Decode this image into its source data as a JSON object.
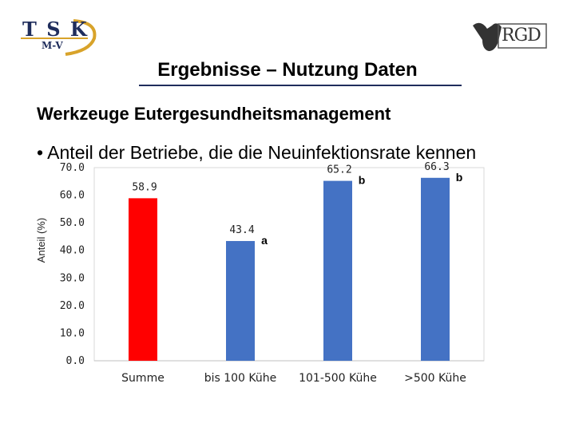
{
  "logos": {
    "left_top": "T S K",
    "left_bottom": "M-V",
    "right": "RGD"
  },
  "title": "Ergebnisse – Nutzung Daten",
  "subtitle": "Werkzeuge Eutergesundheitsmanagement",
  "bullet": "• Anteil der Betriebe, die die Neuinfektionsrate kennen",
  "colors": {
    "highlight": "#ff0000",
    "bar": "#4472c4",
    "title_rule": "#1f2d5c"
  },
  "chart_data": {
    "type": "bar",
    "ylabel": "Anteil (%)",
    "xlabel": "",
    "ylim": [
      0,
      70
    ],
    "yticks": [
      "0.0",
      "10.0",
      "20.0",
      "30.0",
      "40.0",
      "50.0",
      "60.0",
      "70.0"
    ],
    "grid": false,
    "categories": [
      "Summe",
      "bis 100 Kühe",
      "101-500 Kühe",
      ">500 Kühe"
    ],
    "values": [
      58.9,
      43.4,
      65.2,
      66.3
    ],
    "value_labels": [
      "58.9",
      "43.4",
      "65.2",
      "66.3"
    ],
    "significance": [
      "",
      "a",
      "b",
      "b"
    ],
    "bar_colors": [
      "#ff0000",
      "#4472c4",
      "#4472c4",
      "#4472c4"
    ]
  }
}
